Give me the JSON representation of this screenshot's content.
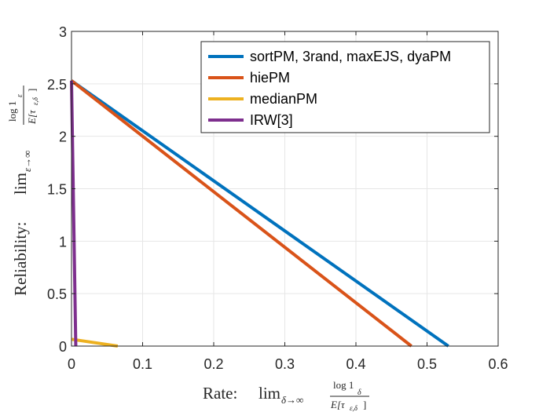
{
  "chart_data": {
    "type": "line",
    "title": "",
    "xlabel": {
      "prefix": "Rate: ",
      "lim": "lim",
      "sub": "δ→∞",
      "num": "log 1",
      "num_den": "δ",
      "den": "E[τ",
      "den_sub": "ε,δ",
      "den_close": "]"
    },
    "ylabel": {
      "prefix": "Reliability: ",
      "lim": "lim",
      "sub": "ε→∞",
      "num": "log 1",
      "num_den": "ε",
      "den": "E[τ",
      "den_sub": "ε,δ",
      "den_close": "]"
    },
    "xlim": [
      0,
      0.6
    ],
    "ylim": [
      0,
      3
    ],
    "xticks": [
      "0",
      "0.1",
      "0.2",
      "0.3",
      "0.4",
      "0.5",
      "0.6"
    ],
    "yticks": [
      "0",
      "0.5",
      "1",
      "1.5",
      "2",
      "2.5",
      "3"
    ],
    "grid": true,
    "legend_position": "top-right",
    "series": [
      {
        "name": "sortPM, 3rand, maxEJS, dyaPM",
        "color": "#0072BD",
        "x": [
          0,
          0.53
        ],
        "y": [
          2.53,
          0
        ]
      },
      {
        "name": "hiePM",
        "color": "#D95319",
        "x": [
          0,
          0.478
        ],
        "y": [
          2.53,
          0
        ]
      },
      {
        "name": "medianPM",
        "color": "#EDB120",
        "x": [
          0,
          0.065
        ],
        "y": [
          0.065,
          0
        ]
      },
      {
        "name": "IRW[3]",
        "color": "#7E2F8E",
        "x": [
          0,
          0.006
        ],
        "y": [
          2.53,
          0
        ]
      }
    ]
  }
}
